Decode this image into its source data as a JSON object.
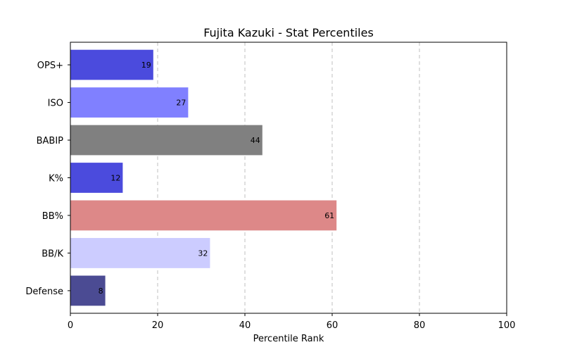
{
  "chart_data": {
    "type": "bar",
    "orientation": "horizontal",
    "title": "Fujita Kazuki - Stat Percentiles",
    "xlabel": "Percentile Rank",
    "ylabel": "",
    "xlim": [
      0,
      100
    ],
    "xticks": [
      0,
      20,
      40,
      60,
      80,
      100
    ],
    "grid": "x-dashed",
    "legend": "none",
    "categories": [
      "OPS+",
      "ISO",
      "BABIP",
      "K%",
      "BB%",
      "BB/K",
      "Defense"
    ],
    "values": [
      19,
      27,
      44,
      12,
      61,
      32,
      8
    ],
    "colors": [
      "#4b4bdd",
      "#8080ff",
      "#808080",
      "#4b4bdd",
      "#dd8888",
      "#ccccff",
      "#4b4b93"
    ]
  }
}
